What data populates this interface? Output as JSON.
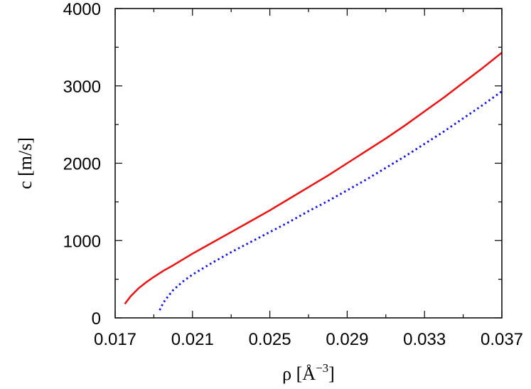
{
  "chart_data": {
    "type": "line",
    "title": "",
    "xlabel": "ρ [Å",
    "xlabel_sup": "−3",
    "xlabel_close": "]",
    "ylabel": "c [m/s]",
    "xlim": [
      0.017,
      0.037
    ],
    "ylim": [
      0,
      4000
    ],
    "xticks": [
      0.017,
      0.021,
      0.025,
      0.029,
      0.033,
      0.037
    ],
    "xtick_labels": [
      "0.017",
      "0.021",
      "0.025",
      "0.029",
      "0.033",
      "0.037"
    ],
    "yticks": [
      0,
      1000,
      2000,
      3000,
      4000
    ],
    "ytick_labels": [
      "0",
      "1000",
      "2000",
      "3000",
      "4000"
    ],
    "x_minor_step": 0.002,
    "y_minor_step": 500,
    "grid": false,
    "legend": "none",
    "series": [
      {
        "color": "#ee1111",
        "dash": "solid",
        "x": [
          0.0175,
          0.0178,
          0.0182,
          0.0186,
          0.019,
          0.0195,
          0.02,
          0.021,
          0.022,
          0.023,
          0.024,
          0.025,
          0.026,
          0.027,
          0.028,
          0.029,
          0.03,
          0.031,
          0.032,
          0.033,
          0.034,
          0.035,
          0.036,
          0.037
        ],
        "y": [
          180,
          280,
          380,
          460,
          530,
          610,
          680,
          830,
          970,
          1110,
          1250,
          1390,
          1540,
          1690,
          1840,
          2000,
          2160,
          2320,
          2490,
          2670,
          2850,
          3040,
          3230,
          3430
        ]
      },
      {
        "color": "#1111ee",
        "dash": "dotted",
        "x": [
          0.0193,
          0.0195,
          0.0198,
          0.02,
          0.0205,
          0.021,
          0.022,
          0.023,
          0.024,
          0.025,
          0.026,
          0.027,
          0.028,
          0.029,
          0.03,
          0.031,
          0.032,
          0.033,
          0.034,
          0.035,
          0.036,
          0.037
        ],
        "y": [
          100,
          200,
          300,
          360,
          470,
          560,
          710,
          850,
          980,
          1110,
          1240,
          1380,
          1510,
          1650,
          1790,
          1940,
          2090,
          2250,
          2410,
          2580,
          2750,
          2930
        ]
      }
    ]
  }
}
